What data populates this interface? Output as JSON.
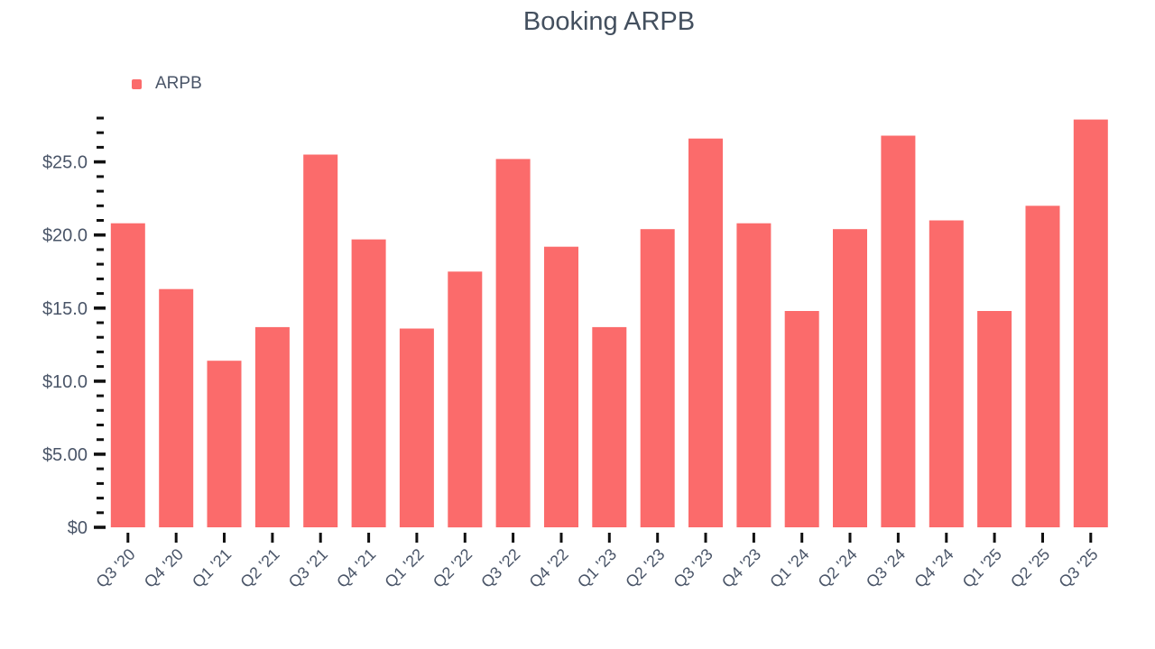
{
  "chart_data": {
    "type": "bar",
    "title": "Booking ARPB",
    "legend_position": "top-left",
    "grid": false,
    "categories": [
      "Q3 '20",
      "Q4 '20",
      "Q1 '21",
      "Q2 '21",
      "Q3 '21",
      "Q4 '21",
      "Q1 '22",
      "Q2 '22",
      "Q3 '22",
      "Q4 '22",
      "Q1 '23",
      "Q2 '23",
      "Q3 '23",
      "Q4 '23",
      "Q1 '24",
      "Q2 '24",
      "Q3 '24",
      "Q4 '24",
      "Q1 '25",
      "Q2 '25",
      "Q3 '25"
    ],
    "series": [
      {
        "name": "ARPB",
        "color": "#fb6b6b",
        "values": [
          20.8,
          16.3,
          11.4,
          13.7,
          25.5,
          19.7,
          13.6,
          17.5,
          25.2,
          19.2,
          13.7,
          20.4,
          26.6,
          20.8,
          14.8,
          20.4,
          26.8,
          21.0,
          14.8,
          22.0,
          27.9
        ]
      }
    ],
    "xlabel": "",
    "ylabel": "",
    "ylim": [
      0,
      28
    ],
    "y_minor_tick_step": 1,
    "y_major_tick_step": 5,
    "y_major_ticks": [
      {
        "value": 0,
        "label": "$0"
      },
      {
        "value": 5,
        "label": "$5.00"
      },
      {
        "value": 10,
        "label": "$10.0"
      },
      {
        "value": 15,
        "label": "$15.0"
      },
      {
        "value": 20,
        "label": "$20.0"
      },
      {
        "value": 25,
        "label": "$25.0"
      }
    ],
    "colors": {
      "bar": "#fb6b6b",
      "label": "#4a5568",
      "title": "#434f5e",
      "tick": "#111111",
      "background": "#ffffff"
    }
  }
}
